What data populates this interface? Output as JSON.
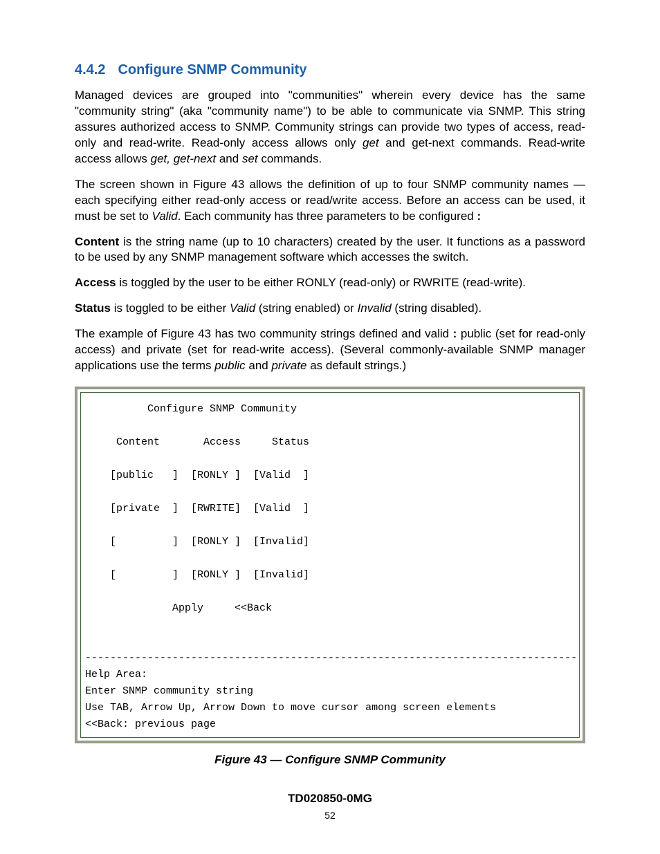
{
  "heading": {
    "number": "4.4.2",
    "title": "Configure SNMP Community"
  },
  "paragraphs": {
    "p1_a": "Managed devices are grouped into \"communities\" wherein every device has the same \"community string\" (aka \"community name\") to be able to communicate via SNMP.  This string assures authorized access to SNMP.  Community strings can provide two types of access, read-only and read-write.  Read-only access allows only ",
    "p1_get": "get",
    "p1_b": " and get-next commands. Read-write access allows ",
    "p1_ggn": "get, get-next",
    "p1_c": " and ",
    "p1_set": "set",
    "p1_d": " commands.",
    "p2_a": "The screen shown in Figure 43 allows the definition of up to four SNMP community names — each specifying either read-only access or read/write access.  Before an access can be used, it must be set to ",
    "p2_valid": "Valid",
    "p2_b": ".  Each community has three parameters to be configured ",
    "p2_colon": ":",
    "p3_label": "Content",
    "p3_text": " is the string name (up to 10 characters) created by the user.  It functions as a password to be used by any SNMP management software which accesses the switch.",
    "p4_label": "Access",
    "p4_text": " is toggled by the user to be either RONLY (read-only) or RWRITE (read-write).",
    "p5_label": "Status",
    "p5_a": " is toggled to be either ",
    "p5_valid": "Valid",
    "p5_b": " (string enabled) or ",
    "p5_invalid": "Invalid",
    "p5_c": " (string disabled).",
    "p6_a": "The example of Figure 43 has two community strings defined and valid ",
    "p6_colon": ":",
    "p6_b": "   public (set for read-only access) and private (set for read-write access).  (Several commonly-available SNMP manager applications use the terms ",
    "p6_public": "public",
    "p6_c": " and ",
    "p6_private": "private",
    "p6_d": " as default strings.)"
  },
  "terminal": {
    "title": "Configure SNMP Community",
    "headers": {
      "content": "Content",
      "access": "Access",
      "status": "Status"
    },
    "rows": [
      {
        "content": "public",
        "access": "RONLY ",
        "status": "Valid  "
      },
      {
        "content": "private",
        "access": "RWRITE",
        "status": "Valid  "
      },
      {
        "content": "",
        "access": "RONLY ",
        "status": "Invalid"
      },
      {
        "content": "",
        "access": "RONLY ",
        "status": "Invalid"
      }
    ],
    "apply": "Apply",
    "back": "<<Back",
    "help_area_label": "Help Area:",
    "help_line1": "Enter SNMP community string",
    "help_line2": "Use TAB, Arrow Up, Arrow Down to move cursor among screen elements",
    "help_line3": "<<Back: previous page"
  },
  "figure_caption": "Figure 43 — Configure SNMP Community",
  "footer": {
    "docid": "TD020850-0MG",
    "page": "52"
  },
  "colors": {
    "heading": "#1f5ea8",
    "text": "#000000",
    "terminal_outer_border": "#9a9a8e",
    "terminal_inner_border": "#3a6a3a",
    "background": "#ffffff"
  },
  "typography": {
    "body_font": "Arial",
    "body_size_pt": 13,
    "terminal_font": "Courier New",
    "terminal_size_pt": 11
  }
}
